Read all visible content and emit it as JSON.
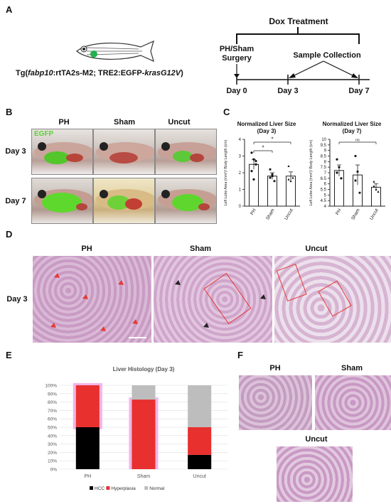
{
  "panels": {
    "A": {
      "letter": "A",
      "genotype_prefix": "Tg(",
      "genotype_fabp": "fabp10",
      "genotype_mid": ":rtTA2s-M2; TRE2:EGFP-",
      "genotype_kras": "krasG12V",
      "genotype_suffix": ")",
      "dox_label": "Dox Treatment",
      "surgery_label_1": "PH/Sham",
      "surgery_label_2": "Surgery",
      "sample_label": "Sample Collection",
      "days": [
        "Day 0",
        "Day 3",
        "Day 7"
      ]
    },
    "B": {
      "letter": "B",
      "columns": [
        "PH",
        "Sham",
        "Uncut"
      ],
      "rows": [
        "Day 3",
        "Day 7"
      ],
      "egfp": "EGFP"
    },
    "C": {
      "letter": "C",
      "ylabel": "Left Lobe Area (mm²)/ Body Length (cm)",
      "chart_day3_title_1": "Normalized Liver Size",
      "chart_day3_title_2": "(Day 3)",
      "chart_day7_title_1": "Normalized Liver Size",
      "chart_day7_title_2": "(Day 7)",
      "sig_star": "*",
      "sig_ns": "ns"
    },
    "D": {
      "letter": "D",
      "columns": [
        "PH",
        "Sham",
        "Uncut"
      ],
      "row": "Day 3"
    },
    "E": {
      "letter": "E"
    },
    "F": {
      "letter": "F",
      "labels": [
        "PH",
        "Sham",
        "Uncut"
      ]
    }
  },
  "chart_data": [
    {
      "type": "bar",
      "title": "Normalized Liver Size (Day 3)",
      "ylabel": "Left Lobe Area (mm²)/ Body Length (cm)",
      "categories": [
        "PH",
        "Sham",
        "Uncut"
      ],
      "values": [
        2.5,
        1.8,
        1.8
      ],
      "errors": [
        0.3,
        0.2,
        0.25
      ],
      "points": [
        [
          3.2,
          2.8,
          2.5,
          2.1,
          1.6,
          2.7
        ],
        [
          2.2,
          1.9,
          1.5,
          1.7,
          1.8
        ],
        [
          2.4,
          1.5,
          1.7,
          1.6
        ]
      ],
      "ylim": [
        0,
        4
      ],
      "yticks": [
        0,
        1,
        2,
        3,
        4
      ],
      "colors": {
        "bar_fill": "#ffffff",
        "bar_stroke": "#222222"
      }
    },
    {
      "type": "bar",
      "title": "Normalized Liver Size (Day 7)",
      "ylabel": "Left Lobe Area (mm²)/ Body Length (cm)",
      "categories": [
        "PH",
        "Sham",
        "Uncut"
      ],
      "values": [
        7.2,
        6.8,
        5.7
      ],
      "errors": [
        0.5,
        0.9,
        0.3
      ],
      "points": [
        [
          8.2,
          7.5,
          6.5,
          7.0
        ],
        [
          8.5,
          7.1,
          5.2,
          6.3
        ],
        [
          6.2,
          5.5,
          5.3,
          5.8
        ]
      ],
      "ylim": [
        4,
        10
      ],
      "yticks": [
        4.0,
        4.5,
        5.0,
        5.5,
        6.0,
        6.5,
        7.0,
        7.5,
        8.0,
        8.5,
        9.0,
        9.5,
        10.0
      ],
      "colors": {
        "bar_fill": "#ffffff",
        "bar_stroke": "#222222"
      }
    },
    {
      "type": "bar",
      "stacked": true,
      "title": "Liver Histology (Day 3)",
      "categories": [
        "PH",
        "Sham",
        "Uncut"
      ],
      "series": [
        {
          "name": "HCC",
          "values": [
            50,
            0,
            17
          ],
          "color": "#000000"
        },
        {
          "name": "Hyperplasia",
          "values": [
            50,
            83,
            33
          ],
          "color": "#e8302f"
        },
        {
          "name": "Normal",
          "values": [
            0,
            17,
            50
          ],
          "color": "#bdbdbd"
        }
      ],
      "ylim": [
        0,
        100
      ],
      "yticks": [
        "0%",
        "10%",
        "20%",
        "30%",
        "40%",
        "50%",
        "60%",
        "70%",
        "80%",
        "90%",
        "100%"
      ],
      "highlight_color": "#f3b5e6"
    }
  ]
}
